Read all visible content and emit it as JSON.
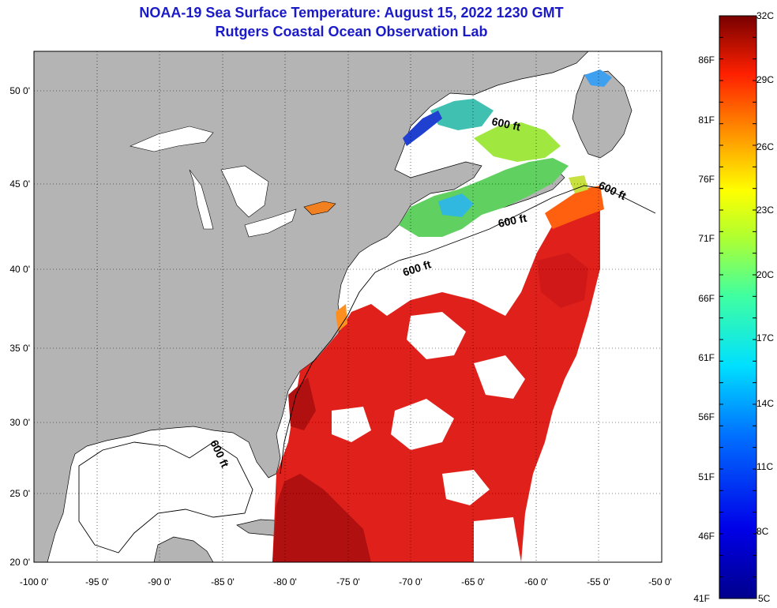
{
  "title": "NOAA-19 Sea Surface Temperature:  August 15, 2022 1230 GMT",
  "subtitle": "Rutgers Coastal Ocean Observation Lab",
  "colors": {
    "land": "#b4b4b4",
    "water_no_data": "#ffffff",
    "warm": "#e0201a",
    "hot": "#b01010",
    "cool": "#40c040",
    "cold": "#2060e0"
  },
  "map": {
    "lon_range": [
      -100,
      -50
    ],
    "lat_range": [
      20,
      52.5
    ],
    "lon_ticks": [
      "-100 0'",
      "-95 0'",
      "-90 0'",
      "-85 0'",
      "-80 0'",
      "-75 0'",
      "-70 0'",
      "-65 0'",
      "-60 0'",
      "-55 0'",
      "-50 0'"
    ],
    "lat_ticks": [
      "50 0'",
      "45 0'",
      "40 0'",
      "35 0'",
      "30 0'",
      "25 0'",
      "20 0'"
    ],
    "contour_labels": [
      "600 ft",
      "600 ft",
      "600 ft",
      "600 ft",
      "600 ft"
    ]
  },
  "colorbar": {
    "celsius_labels": [
      "32C",
      "29C",
      "26C",
      "23C",
      "20C",
      "17C",
      "14C",
      "11C",
      "8C",
      "5C"
    ],
    "fahrenheit_labels": [
      "86F",
      "81F",
      "76F",
      "71F",
      "66F",
      "61F",
      "56F",
      "51F",
      "46F",
      "41F"
    ]
  }
}
